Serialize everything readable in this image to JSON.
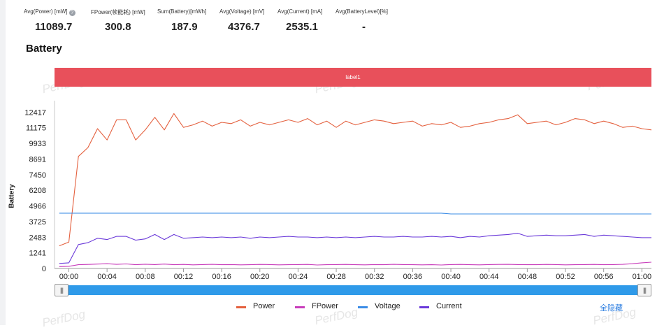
{
  "stats": [
    {
      "label": "Avg(Power) [mW]",
      "value": "11089.7",
      "has_help_icon": true
    },
    {
      "label": "FPower(帧能耗) [mW]",
      "value": "300.8"
    },
    {
      "label": "Sum(Battery)[mWh]",
      "value": "187.9"
    },
    {
      "label": "Avg(Voltage) [mV]",
      "value": "4376.7"
    },
    {
      "label": "Avg(Current) [mA]",
      "value": "2535.1"
    },
    {
      "label": "Avg(BatteryLevel)[%]",
      "value": "-"
    }
  ],
  "help_icon_glyph": "?",
  "section_title": "Battery",
  "label_band": {
    "text": "label1",
    "color": "#e8505b"
  },
  "watermark": "PerfDog",
  "slider": {
    "left_handle": "|||",
    "right_handle": "|||",
    "color": "#2f9ae9"
  },
  "legend_hide_all": "全隐藏",
  "chart_data": {
    "type": "line",
    "ylabel": "Battery",
    "yticks": [
      0,
      1241,
      2483,
      3725,
      4966,
      6208,
      7450,
      8691,
      9933,
      11175,
      12417
    ],
    "ylim": [
      0,
      13100
    ],
    "xlabels": [
      "00:00",
      "00:04",
      "00:08",
      "00:12",
      "00:16",
      "00:20",
      "00:24",
      "00:28",
      "00:32",
      "00:36",
      "00:40",
      "00:44",
      "00:48",
      "00:52",
      "00:56",
      "01:00"
    ],
    "x_seconds_range": [
      -1.5,
      61
    ],
    "x_seconds": [
      -1,
      0,
      1,
      2,
      3,
      4,
      5,
      6,
      7,
      8,
      9,
      10,
      11,
      12,
      13,
      14,
      15,
      16,
      17,
      18,
      19,
      20,
      21,
      22,
      23,
      24,
      25,
      26,
      27,
      28,
      29,
      30,
      31,
      32,
      33,
      34,
      35,
      36,
      37,
      38,
      39,
      40,
      41,
      42,
      43,
      44,
      45,
      46,
      47,
      48,
      49,
      50,
      51,
      52,
      53,
      54,
      55,
      56,
      57,
      58,
      59,
      60,
      61
    ],
    "grid": false,
    "legend_position": "bottom",
    "series": [
      {
        "name": "Power",
        "color": "#e4603e",
        "values": [
          1800,
          2100,
          8900,
          9600,
          11100,
          10200,
          11800,
          11800,
          10200,
          11000,
          12000,
          11000,
          12300,
          11200,
          11400,
          11700,
          11300,
          11600,
          11500,
          11800,
          11300,
          11600,
          11400,
          11600,
          11800,
          11600,
          11900,
          11400,
          11700,
          11200,
          11700,
          11400,
          11600,
          11800,
          11700,
          11500,
          11600,
          11700,
          11300,
          11500,
          11400,
          11600,
          11200,
          11300,
          11500,
          11600,
          11800,
          11900,
          12200,
          11500,
          11600,
          11700,
          11400,
          11600,
          11900,
          11800,
          11500,
          11700,
          11500,
          11200,
          11300,
          11100,
          11000
        ]
      },
      {
        "name": "FPower",
        "color": "#c83dbb",
        "values": [
          150,
          170,
          300,
          320,
          350,
          380,
          330,
          360,
          300,
          340,
          310,
          350,
          300,
          320,
          290,
          310,
          330,
          300,
          310,
          290,
          300,
          320,
          310,
          290,
          300,
          310,
          320,
          280,
          300,
          310,
          320,
          300,
          290,
          310,
          300,
          330,
          310,
          300,
          290,
          300,
          280,
          310,
          320,
          300,
          290,
          310,
          320,
          330,
          310,
          300,
          300,
          320,
          310,
          290,
          300,
          310,
          320,
          300,
          310,
          330,
          380,
          450,
          500
        ]
      },
      {
        "name": "Voltage",
        "color": "#3b8ce6",
        "values": [
          4390,
          4390,
          4390,
          4390,
          4390,
          4390,
          4390,
          4390,
          4390,
          4390,
          4390,
          4390,
          4390,
          4390,
          4390,
          4390,
          4390,
          4390,
          4390,
          4390,
          4390,
          4390,
          4390,
          4390,
          4390,
          4390,
          4390,
          4390,
          4390,
          4390,
          4390,
          4390,
          4390,
          4390,
          4390,
          4390,
          4390,
          4390,
          4390,
          4390,
          4390,
          4330,
          4330,
          4330,
          4330,
          4330,
          4330,
          4330,
          4330,
          4330,
          4330,
          4330,
          4330,
          4330,
          4330,
          4330,
          4330,
          4330,
          4330,
          4330,
          4330,
          4330,
          4330
        ]
      },
      {
        "name": "Current",
        "color": "#6a39d9",
        "values": [
          400,
          450,
          1900,
          2050,
          2400,
          2300,
          2550,
          2550,
          2250,
          2350,
          2700,
          2300,
          2700,
          2400,
          2450,
          2500,
          2450,
          2500,
          2450,
          2500,
          2400,
          2500,
          2450,
          2500,
          2550,
          2500,
          2500,
          2450,
          2500,
          2450,
          2500,
          2450,
          2500,
          2550,
          2500,
          2500,
          2550,
          2500,
          2500,
          2550,
          2500,
          2550,
          2450,
          2550,
          2500,
          2600,
          2650,
          2700,
          2800,
          2550,
          2600,
          2650,
          2600,
          2600,
          2650,
          2700,
          2550,
          2650,
          2600,
          2550,
          2500,
          2450,
          2450
        ]
      }
    ]
  }
}
